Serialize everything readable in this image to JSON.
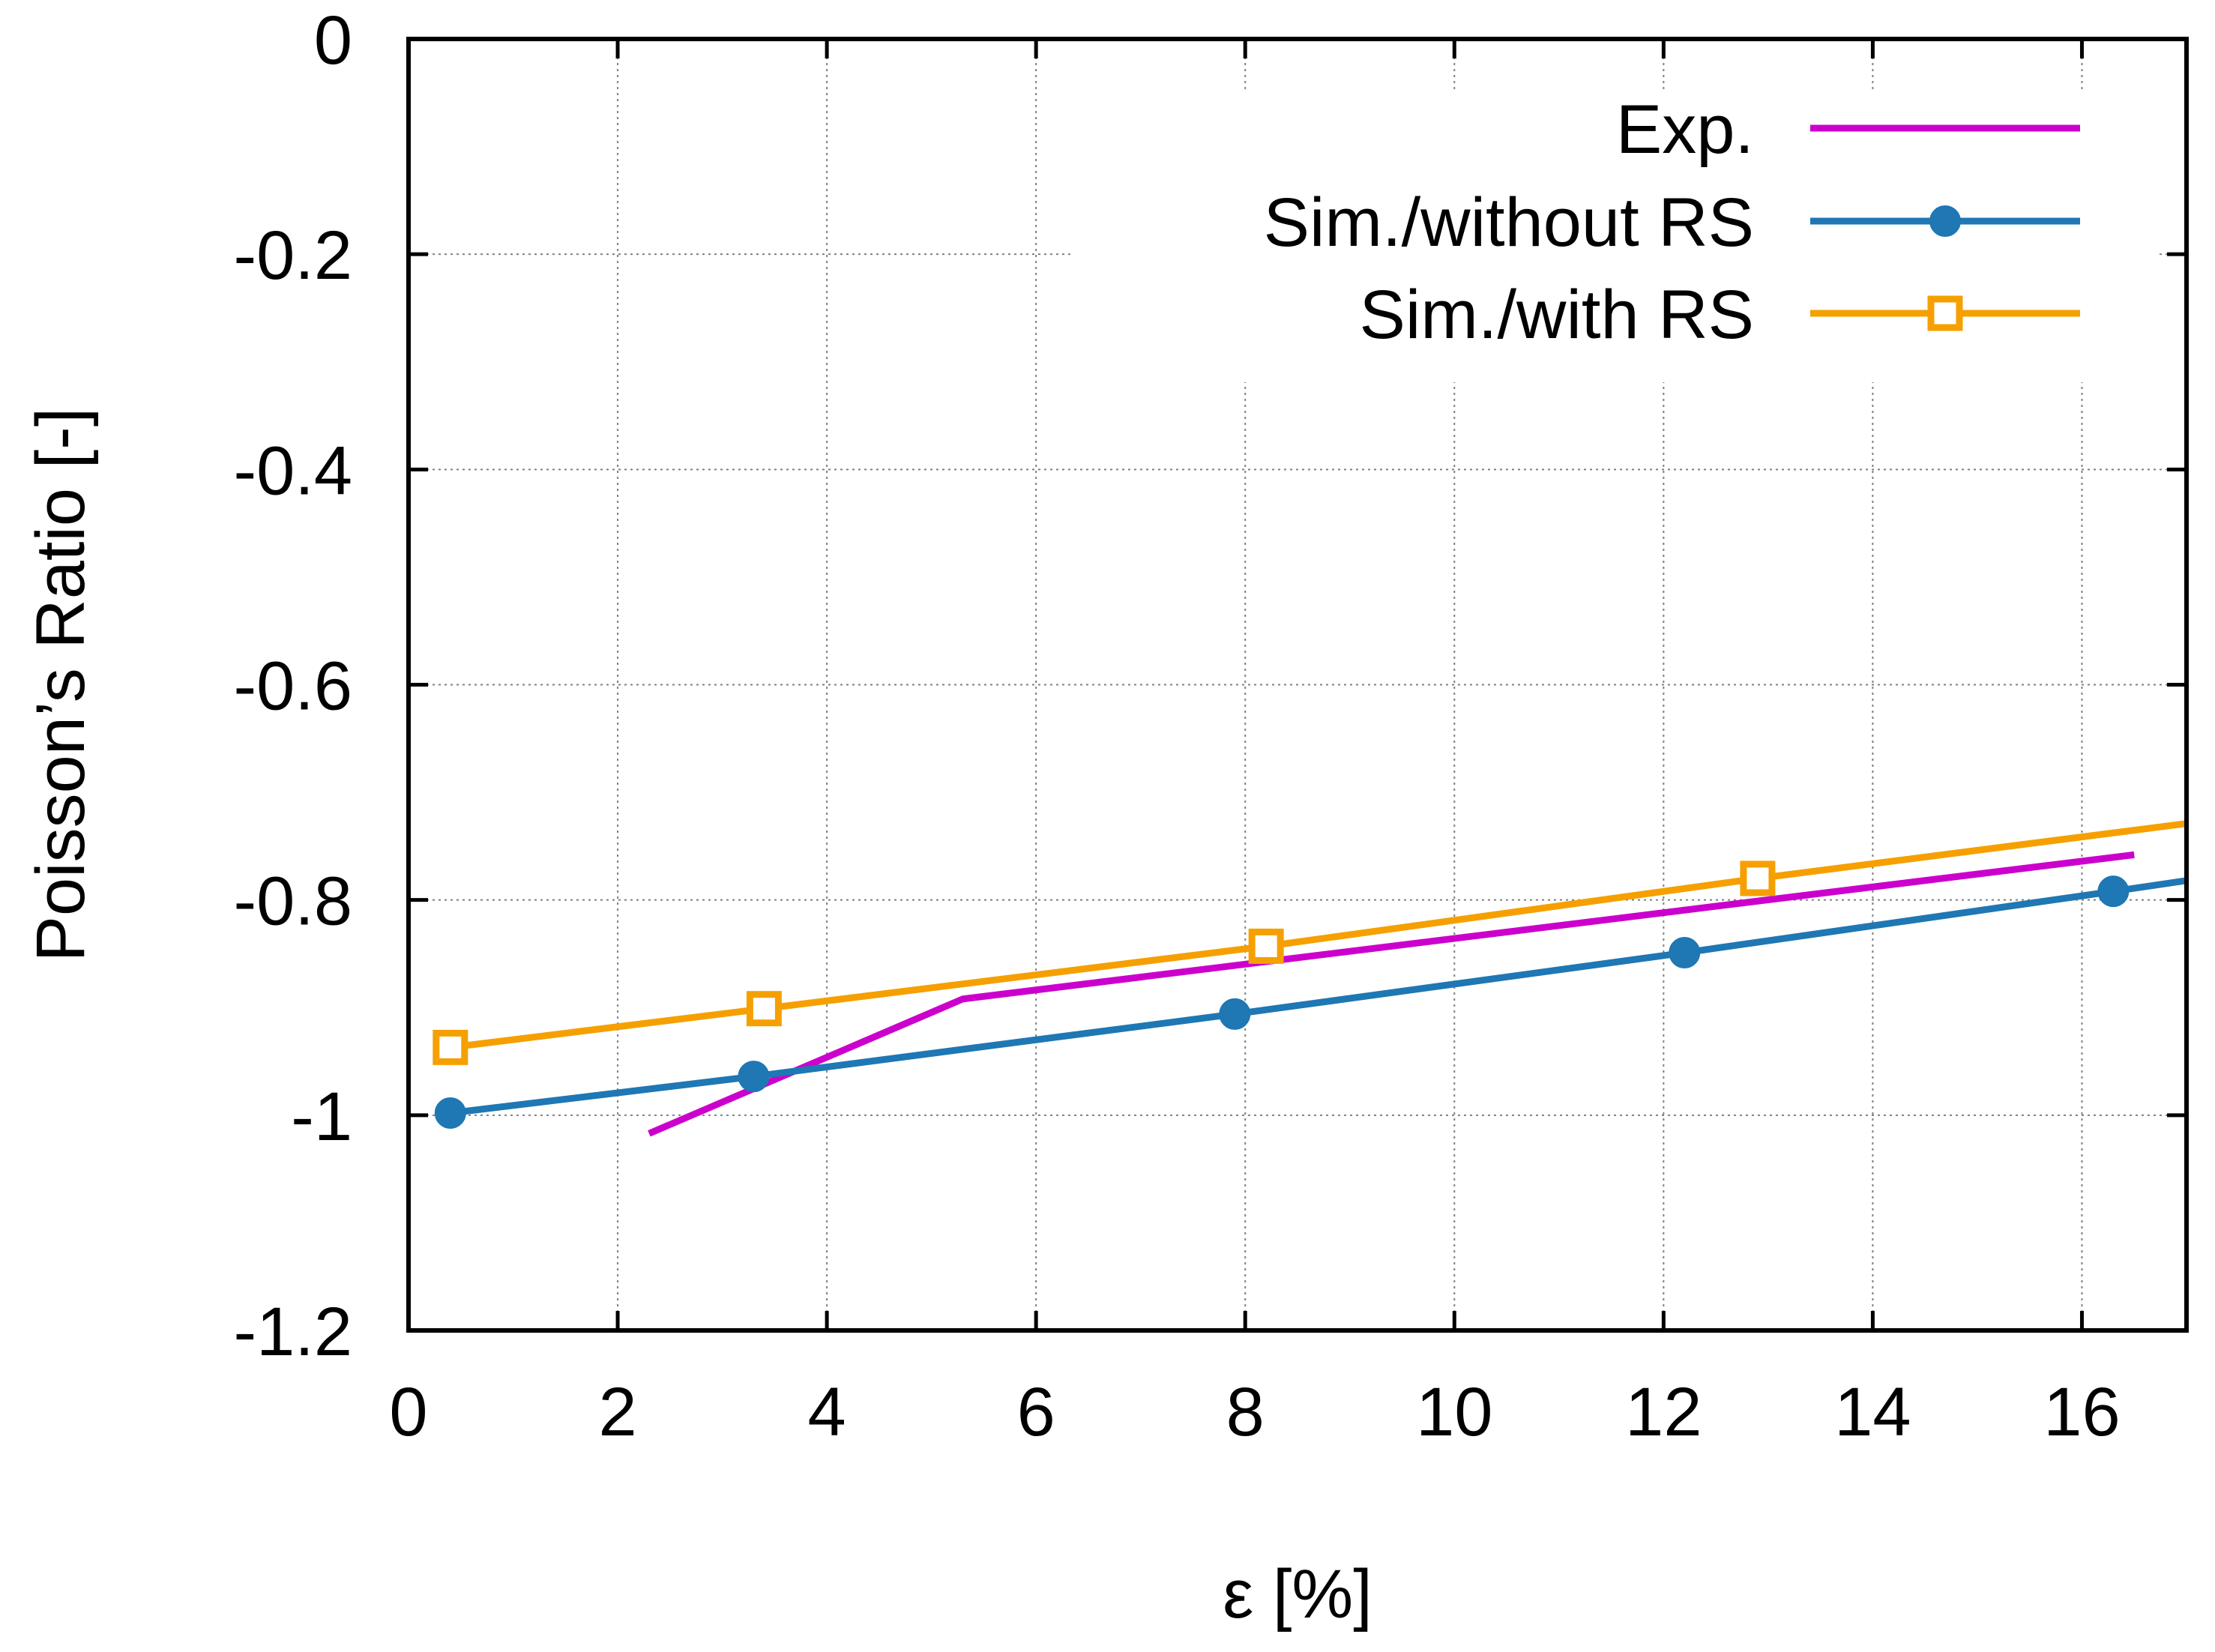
{
  "chart_data": {
    "type": "line",
    "title": "",
    "xlabel": "ε [%]",
    "ylabel": "Poisson’s Ratio [-]",
    "xlim": [
      0,
      17
    ],
    "ylim": [
      -1.2,
      0
    ],
    "grid": true,
    "legend_position": "top-right",
    "x_ticks": [
      0,
      2,
      4,
      6,
      8,
      10,
      12,
      14,
      16
    ],
    "x_tick_labels": [
      "0",
      "2",
      "4",
      "6",
      "8",
      "10",
      "12",
      "14",
      "16"
    ],
    "y_ticks": [
      0,
      -0.2,
      -0.4,
      -0.6,
      -0.8,
      -1,
      -1.2
    ],
    "y_tick_labels": [
      "0",
      "-0.2",
      "-0.4",
      "-0.6",
      "-0.8",
      "-1",
      "-1.2"
    ],
    "series": [
      {
        "name": "Exp.",
        "color": "#cc00cc",
        "marker": "none",
        "x": [
          2.3,
          5.3,
          16.5
        ],
        "y": [
          -1.017,
          -0.892,
          -0.758
        ]
      },
      {
        "name": "Sim./without RS",
        "color": "#1f77b4",
        "marker": "filled-circle",
        "x": [
          0.4,
          3.3,
          7.9,
          12.2,
          16.3,
          17.0
        ],
        "y": [
          -0.998,
          -0.964,
          -0.906,
          -0.849,
          -0.792,
          -0.782
        ]
      },
      {
        "name": "Sim./with RS",
        "color": "#f5a000",
        "marker": "open-square",
        "x": [
          0.4,
          3.4,
          8.2,
          12.9,
          17.0
        ],
        "y": [
          -0.937,
          -0.901,
          -0.843,
          -0.78,
          -0.729
        ]
      }
    ]
  }
}
